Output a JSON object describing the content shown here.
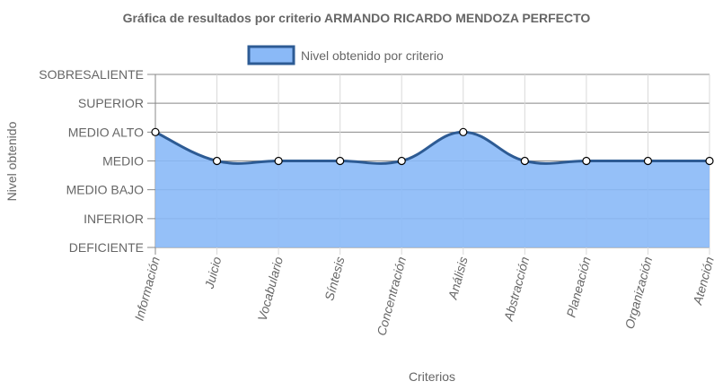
{
  "chart_data": {
    "type": "area",
    "title": "Gráfica de resultados por criterio ARMANDO RICARDO MENDOZA PERFECTO",
    "xlabel": "Criterios",
    "ylabel": "Nivel obtenido",
    "categories": [
      "Información",
      "Juicio",
      "Vocabulario",
      "Síntesis",
      "Concentración",
      "Análisis",
      "Abstracción",
      "Planeación",
      "Organización",
      "Atención"
    ],
    "y_levels": [
      "DEFICIENTE",
      "INFERIOR",
      "MEDIO BAJO",
      "MEDIO",
      "MEDIO ALTO",
      "SUPERIOR",
      "SOBRESALIENTE"
    ],
    "ylim": [
      0,
      6
    ],
    "series": [
      {
        "name": "Nivel obtenido por criterio",
        "values": [
          4,
          3,
          3,
          3,
          3,
          4,
          3,
          3,
          3,
          3
        ],
        "fill_color": "#8ab9f7",
        "line_color": "#2d5b94"
      }
    ],
    "grid": true,
    "legend_position": "top"
  }
}
